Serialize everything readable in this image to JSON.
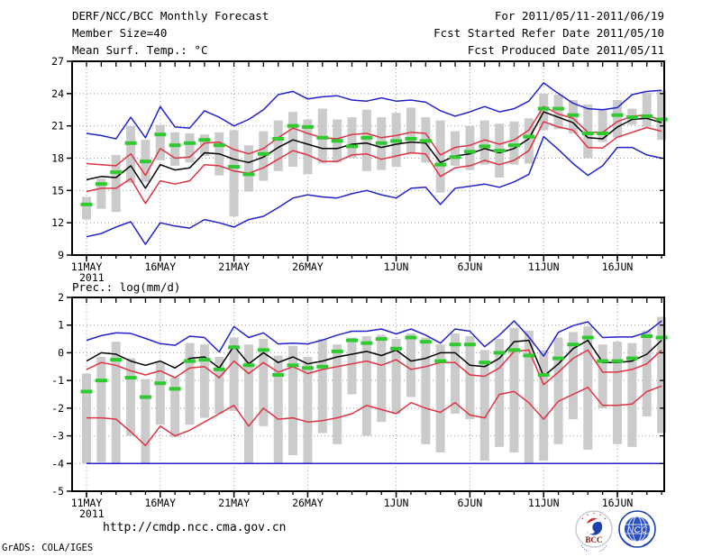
{
  "header": {
    "title_left": "DERF/NCC/BCC Monthly Forecast",
    "title_right": "For 2011/05/11-2011/06/19",
    "member_size": "Member Size=40",
    "fcst_started": "Fcst Started Refer Date 2011/05/10",
    "fcst_produced": "Fcst Produced Date 2011/05/11"
  },
  "footer": {
    "url": "http://cmdp.ncc.cma.gov.cn",
    "grads_credit": "GrADS: COLA/IGES",
    "logos": {
      "bcc_label": "BCC",
      "ncc_label": "NCC"
    }
  },
  "colors": {
    "line_max_min": "#2222cc",
    "line_upper_lower": "#dd3344",
    "line_mean": "#000000",
    "obs_marker": "#2fca2f",
    "spread_bar": "#cbcbcb",
    "grid": "#999999",
    "axis": "#000000",
    "background": "#ffffff"
  },
  "chart_data": [
    {
      "type": "line",
      "panel": "temperature",
      "title": "Mean Surf. Temp.: °C",
      "ylim": [
        9,
        27
      ],
      "y_ticks": [
        27,
        24,
        21,
        18,
        15,
        12,
        9
      ],
      "x_tick_labels": [
        "11MAY",
        "16MAY",
        "21MAY",
        "26MAY",
        "1JUN",
        "6JUN",
        "11JUN",
        "16JUN"
      ],
      "x_tick_days": [
        0,
        5,
        10,
        15,
        21,
        26,
        31,
        36
      ],
      "x_sub_label": "2011",
      "n_points": 40,
      "grid": "dotted",
      "series": [
        {
          "name": "ensemble-max",
          "color": "line_max_min",
          "values": [
            20.3,
            20.1,
            19.8,
            21.8,
            19.9,
            22.8,
            20.9,
            20.8,
            22.4,
            21.8,
            21.0,
            21.6,
            22.5,
            23.9,
            24.2,
            23.5,
            23.7,
            23.8,
            23.4,
            23.3,
            23.6,
            23.3,
            23.4,
            23.2,
            22.4,
            21.9,
            22.3,
            22.8,
            22.3,
            22.6,
            23.3,
            25.0,
            24.0,
            23.1,
            22.6,
            22.5,
            22.7,
            23.9,
            24.2,
            24.3
          ]
        },
        {
          "name": "upper-bound",
          "color": "line_upper_lower",
          "values": [
            17.5,
            17.4,
            17.3,
            18.4,
            16.4,
            18.9,
            18.0,
            18.1,
            19.4,
            19.5,
            18.8,
            18.4,
            18.9,
            19.9,
            20.8,
            20.3,
            19.9,
            19.8,
            20.2,
            20.3,
            19.9,
            20.1,
            20.4,
            20.3,
            18.3,
            19.0,
            19.2,
            19.7,
            19.3,
            19.7,
            20.6,
            22.8,
            22.1,
            21.7,
            20.4,
            20.4,
            21.4,
            21.9,
            22.0,
            21.5
          ]
        },
        {
          "name": "ensemble-mean",
          "color": "line_mean",
          "values": [
            16.0,
            16.3,
            16.2,
            17.3,
            15.2,
            17.4,
            16.9,
            17.1,
            18.5,
            18.4,
            17.9,
            17.6,
            18.1,
            19.0,
            19.7,
            19.3,
            18.9,
            18.9,
            19.3,
            19.4,
            19.0,
            19.3,
            19.5,
            19.4,
            17.6,
            18.2,
            18.4,
            18.9,
            18.5,
            18.9,
            19.8,
            22.3,
            21.8,
            21.3,
            19.9,
            19.8,
            20.9,
            21.6,
            21.7,
            21.3
          ]
        },
        {
          "name": "lower-bound",
          "color": "line_upper_lower",
          "values": [
            14.9,
            15.2,
            15.2,
            16.1,
            13.8,
            15.9,
            15.6,
            15.9,
            17.4,
            17.3,
            16.8,
            16.6,
            17.1,
            17.9,
            18.7,
            18.3,
            17.7,
            17.7,
            18.3,
            18.4,
            17.9,
            18.2,
            18.5,
            18.4,
            16.3,
            17.1,
            17.3,
            17.8,
            17.4,
            17.8,
            18.7,
            21.4,
            20.9,
            20.6,
            19.0,
            18.95,
            19.95,
            20.4,
            20.85,
            20.5
          ]
        },
        {
          "name": "ensemble-min",
          "color": "line_max_min",
          "values": [
            10.7,
            11.0,
            11.6,
            12.1,
            10.0,
            12.0,
            11.7,
            11.5,
            12.3,
            12.0,
            11.6,
            12.3,
            12.6,
            13.4,
            14.3,
            14.6,
            14.4,
            14.3,
            14.7,
            15.0,
            14.6,
            14.3,
            15.2,
            15.3,
            13.7,
            15.2,
            15.4,
            15.6,
            15.3,
            15.8,
            16.5,
            20.0,
            18.8,
            17.5,
            16.4,
            17.3,
            19.0,
            19.0,
            18.3,
            18.0
          ]
        }
      ],
      "markers": {
        "name": "observation",
        "color": "obs_marker",
        "values": [
          13.7,
          15.6,
          16.7,
          19.4,
          17.7,
          20.2,
          19.2,
          19.4,
          19.7,
          19.2,
          17.2,
          16.5,
          18.4,
          19.8,
          21.0,
          20.9,
          19.9,
          19.6,
          19.1,
          19.9,
          19.4,
          19.6,
          19.8,
          19.6,
          17.4,
          18.1,
          18.6,
          19.1,
          18.7,
          19.2,
          20.0,
          22.6,
          22.6,
          22.0,
          20.3,
          20.3,
          22.0,
          21.8,
          21.9,
          21.6
        ]
      },
      "bars": {
        "name": "ensemble-spread",
        "color": "spread_bar",
        "ranges": [
          [
            14.4,
            12.3
          ],
          [
            16.1,
            13.3
          ],
          [
            18.3,
            13.0
          ],
          [
            21.0,
            15.7
          ],
          [
            19.7,
            15.8
          ],
          [
            21.1,
            17.8
          ],
          [
            20.4,
            17.3
          ],
          [
            20.3,
            17.6
          ],
          [
            20.2,
            18.2
          ],
          [
            20.4,
            16.4
          ],
          [
            20.6,
            12.6
          ],
          [
            19.2,
            14.9
          ],
          [
            20.5,
            15.9
          ],
          [
            21.5,
            16.8
          ],
          [
            22.3,
            17.2
          ],
          [
            21.6,
            16.5
          ],
          [
            22.6,
            17.5
          ],
          [
            21.6,
            17.6
          ],
          [
            21.8,
            18.0
          ],
          [
            22.5,
            16.8
          ],
          [
            21.8,
            16.9
          ],
          [
            22.2,
            17.2
          ],
          [
            22.7,
            18.4
          ],
          [
            21.8,
            17.6
          ],
          [
            21.5,
            14.8
          ],
          [
            20.5,
            17.3
          ],
          [
            21.0,
            16.9
          ],
          [
            21.5,
            17.4
          ],
          [
            21.2,
            16.2
          ],
          [
            21.4,
            17.4
          ],
          [
            21.7,
            17.5
          ],
          [
            24.0,
            20.6
          ],
          [
            23.9,
            20.7
          ],
          [
            23.4,
            20.3
          ],
          [
            23.0,
            18.0
          ],
          [
            22.6,
            19.5
          ],
          [
            23.4,
            19.9
          ],
          [
            22.6,
            21.1
          ],
          [
            24.1,
            20.9
          ],
          [
            24.3,
            19.7
          ]
        ]
      }
    },
    {
      "type": "line",
      "panel": "precipitation",
      "title": "Prec.: log(mm/d)",
      "ylim": [
        -5,
        2
      ],
      "y_ticks": [
        2,
        1,
        0,
        -1,
        -2,
        -3,
        -4,
        -5
      ],
      "x_tick_labels": [
        "11MAY",
        "16MAY",
        "21MAY",
        "26MAY",
        "1JUN",
        "6JUN",
        "11JUN",
        "16JUN"
      ],
      "x_tick_days": [
        0,
        5,
        10,
        15,
        21,
        26,
        31,
        36
      ],
      "x_sub_label": "2011",
      "n_points": 40,
      "grid": "dotted",
      "series": [
        {
          "name": "ensemble-max",
          "color": "line_max_min",
          "values": [
            0.45,
            0.62,
            0.72,
            0.7,
            0.52,
            0.33,
            0.27,
            0.6,
            0.55,
            0.03,
            0.95,
            0.55,
            0.72,
            0.32,
            0.35,
            0.32,
            0.46,
            0.64,
            0.78,
            0.78,
            0.86,
            0.68,
            0.86,
            0.64,
            0.35,
            0.86,
            0.78,
            0.22,
            0.64,
            1.15,
            0.57,
            -0.12,
            0.74,
            0.98,
            1.12,
            0.55,
            0.57,
            0.57,
            0.74,
            1.15
          ]
        },
        {
          "name": "upper-bound",
          "color": "line_upper_lower",
          "values": [
            -0.6,
            -0.35,
            -0.45,
            -0.65,
            -0.8,
            -0.65,
            -0.9,
            -0.55,
            -0.5,
            -0.9,
            -0.3,
            -0.75,
            -0.35,
            -0.7,
            -0.5,
            -0.75,
            -0.6,
            -0.5,
            -0.4,
            -0.3,
            -0.45,
            -0.25,
            -0.6,
            -0.5,
            -0.35,
            -0.35,
            -0.8,
            -0.85,
            -0.55,
            0.05,
            0.1,
            -1.15,
            -0.7,
            -0.2,
            0.1,
            -0.7,
            -0.7,
            -0.6,
            -0.4,
            0.1
          ]
        },
        {
          "name": "ensemble-mean",
          "color": "line_mean",
          "values": [
            -0.3,
            0.0,
            -0.05,
            -0.3,
            -0.45,
            -0.3,
            -0.55,
            -0.2,
            -0.15,
            -0.55,
            0.25,
            -0.4,
            0.0,
            -0.35,
            -0.15,
            -0.4,
            -0.3,
            -0.15,
            -0.05,
            0.05,
            -0.1,
            0.1,
            -0.3,
            -0.2,
            0.0,
            0.0,
            -0.45,
            -0.5,
            -0.2,
            0.4,
            0.45,
            -0.85,
            -0.4,
            0.15,
            0.45,
            -0.35,
            -0.35,
            -0.3,
            -0.05,
            0.45
          ]
        },
        {
          "name": "lower-bound",
          "color": "line_upper_lower",
          "values": [
            -2.35,
            -2.35,
            -2.4,
            -2.85,
            -3.35,
            -2.65,
            -3.0,
            -2.8,
            -2.5,
            -2.2,
            -1.9,
            -2.65,
            -2.0,
            -2.4,
            -2.35,
            -2.5,
            -2.45,
            -2.35,
            -2.2,
            -1.9,
            -2.05,
            -2.2,
            -1.8,
            -2.0,
            -2.15,
            -1.8,
            -2.25,
            -2.35,
            -1.5,
            -1.4,
            -1.8,
            -2.4,
            -1.75,
            -1.5,
            -1.25,
            -1.9,
            -1.9,
            -1.85,
            -1.4,
            -1.2
          ]
        },
        {
          "name": "ensemble-min",
          "color": "line_max_min",
          "values": [
            -4.0,
            -4.0,
            -4.0,
            -4.0,
            -4.0,
            -4.0,
            -4.0,
            -4.0,
            -4.0,
            -4.0,
            -4.0,
            -4.0,
            -4.0,
            -4.0,
            -4.0,
            -4.0,
            -4.0,
            -4.0,
            -4.0,
            -4.0,
            -4.0,
            -4.0,
            -4.0,
            -4.0,
            -4.0,
            -4.0,
            -4.0,
            -4.0,
            -4.0,
            -4.0,
            -4.0,
            -4.0,
            -4.0,
            -4.0,
            -4.0,
            -4.0,
            -4.0,
            -4.0,
            -4.0,
            -4.0
          ]
        }
      ],
      "markers": {
        "name": "observation",
        "color": "obs_marker",
        "values": [
          -1.4,
          -1.0,
          -0.25,
          -0.9,
          -1.6,
          -1.1,
          -1.3,
          -0.3,
          -0.25,
          -0.6,
          0.2,
          -0.45,
          0.1,
          -0.8,
          -0.45,
          -0.55,
          -0.5,
          0.05,
          0.45,
          0.35,
          0.5,
          0.15,
          0.55,
          0.4,
          -0.3,
          0.3,
          0.3,
          -0.35,
          0.0,
          0.1,
          -0.1,
          -0.8,
          -0.2,
          0.3,
          0.55,
          -0.3,
          -0.3,
          -0.2,
          0.6,
          0.55
        ]
      },
      "bars": {
        "name": "ensemble-spread",
        "color": "spread_bar",
        "ranges": [
          [
            -0.75,
            -4.0
          ],
          [
            -0.15,
            -3.95
          ],
          [
            0.4,
            -4.0
          ],
          [
            -0.2,
            -3.0
          ],
          [
            -0.95,
            -4.0
          ],
          [
            -0.35,
            -2.6
          ],
          [
            -0.9,
            -3.05
          ],
          [
            0.35,
            -2.6
          ],
          [
            0.3,
            -2.35
          ],
          [
            -0.15,
            -2.2
          ],
          [
            0.55,
            -2.1
          ],
          [
            0.3,
            -4.0
          ],
          [
            0.5,
            -2.65
          ],
          [
            -0.1,
            -4.0
          ],
          [
            0.25,
            -3.7
          ],
          [
            -0.15,
            -4.0
          ],
          [
            0.5,
            -2.9
          ],
          [
            0.3,
            -3.3
          ],
          [
            0.55,
            -1.5
          ],
          [
            0.6,
            -3.0
          ],
          [
            0.65,
            -2.5
          ],
          [
            0.5,
            -2.2
          ],
          [
            0.7,
            -1.6
          ],
          [
            0.55,
            -3.3
          ],
          [
            0.3,
            -3.6
          ],
          [
            0.7,
            -2.2
          ],
          [
            0.6,
            -2.4
          ],
          [
            0.1,
            -3.9
          ],
          [
            0.5,
            -3.4
          ],
          [
            0.9,
            -3.6
          ],
          [
            0.8,
            -4.0
          ],
          [
            0.1,
            -3.9
          ],
          [
            0.55,
            -3.3
          ],
          [
            0.75,
            -2.4
          ],
          [
            0.95,
            -3.5
          ],
          [
            0.3,
            -2.0
          ],
          [
            0.4,
            -3.3
          ],
          [
            0.35,
            -3.4
          ],
          [
            0.8,
            -2.3
          ],
          [
            1.3,
            -2.9
          ]
        ]
      }
    }
  ]
}
